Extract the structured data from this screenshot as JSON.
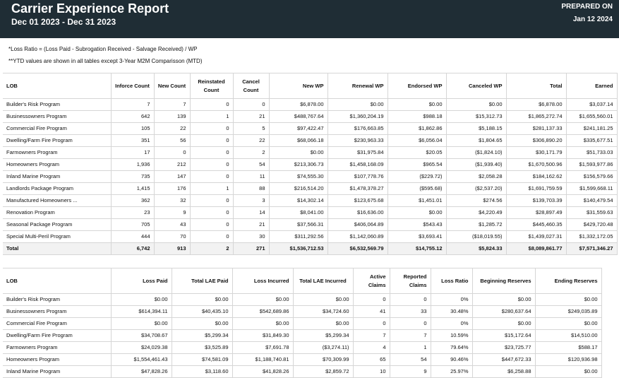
{
  "header": {
    "title": "Carrier Experience Report",
    "date_range": "Dec 01 2023 - Dec 31 2023",
    "prepared_label": "PREPARED ON",
    "prepared_date": "Jan 12 2024"
  },
  "notes": {
    "loss_ratio": "*Loss Ratio = (Loss Paid - Subrogation Received - Salvage Received) / WP",
    "ytd": "**YTD values are shown in all tables except 3-Year M2M Comparisson (MTD)"
  },
  "premium_table": {
    "headers": [
      "LOB",
      "Inforce Count",
      "New Count",
      "Reinstated Count",
      "Cancel Count",
      "New WP",
      "Renewal WP",
      "Endorsed WP",
      "Canceled WP",
      "Total",
      "Earned"
    ],
    "rows": [
      [
        "Builder's Risk Program",
        "7",
        "7",
        "0",
        "0",
        "$6,878.00",
        "$0.00",
        "$0.00",
        "$0.00",
        "$6,878.00",
        "$3,037.14"
      ],
      [
        "Businessowners Program",
        "642",
        "139",
        "1",
        "21",
        "$488,767.64",
        "$1,360,204.19",
        "$988.18",
        "$15,312.73",
        "$1,865,272.74",
        "$1,655,560.01"
      ],
      [
        "Commercial Fire Program",
        "105",
        "22",
        "0",
        "5",
        "$97,422.47",
        "$176,663.85",
        "$1,862.86",
        "$5,188.15",
        "$281,137.33",
        "$241,181.25"
      ],
      [
        "Dwelling/Farm Fire Program",
        "351",
        "56",
        "0",
        "22",
        "$68,066.18",
        "$230,963.33",
        "$6,056.04",
        "$1,804.65",
        "$306,890.20",
        "$335,677.51"
      ],
      [
        "Farmowners Program",
        "17",
        "0",
        "0",
        "2",
        "$0.00",
        "$31,975.84",
        "$20.05",
        "($1,824.10)",
        "$30,171.79",
        "$51,733.03"
      ],
      [
        "Homeowners Program",
        "1,936",
        "212",
        "0",
        "54",
        "$213,306.73",
        "$1,458,168.09",
        "$965.54",
        "($1,939.40)",
        "$1,670,500.96",
        "$1,593,977.86"
      ],
      [
        "Inland Marine Program",
        "735",
        "147",
        "0",
        "11",
        "$74,555.30",
        "$107,778.76",
        "($229.72)",
        "$2,058.28",
        "$184,162.62",
        "$156,579.66"
      ],
      [
        "Landlords Package Program",
        "1,415",
        "176",
        "1",
        "88",
        "$216,514.20",
        "$1,478,378.27",
        "($595.68)",
        "($2,537.20)",
        "$1,691,759.59",
        "$1,599,668.11"
      ],
      [
        "Manufactured Homeowners ...",
        "362",
        "32",
        "0",
        "3",
        "$14,302.14",
        "$123,675.68",
        "$1,451.01",
        "$274.56",
        "$139,703.39",
        "$140,479.54"
      ],
      [
        "Renovation Program",
        "23",
        "9",
        "0",
        "14",
        "$8,041.00",
        "$16,636.00",
        "$0.00",
        "$4,220.49",
        "$28,897.49",
        "$31,559.63"
      ],
      [
        "Seasonal Package Program",
        "705",
        "43",
        "0",
        "21",
        "$37,566.31",
        "$406,064.89",
        "$543.43",
        "$1,285.72",
        "$445,460.35",
        "$429,720.48"
      ],
      [
        "Special Multi-Peril Program",
        "444",
        "70",
        "0",
        "30",
        "$311,292.56",
        "$1,142,060.89",
        "$3,693.41",
        "($18,019.55)",
        "$1,439,027.31",
        "$1,332,172.05"
      ]
    ],
    "total": [
      "Total",
      "6,742",
      "913",
      "2",
      "271",
      "$1,536,712.53",
      "$6,532,569.79",
      "$14,755.12",
      "$5,824.33",
      "$8,089,861.77",
      "$7,571,346.27"
    ]
  },
  "loss_table": {
    "headers": [
      "LOB",
      "Loss Paid",
      "Total LAE Paid",
      "Loss Incurred",
      "Total LAE Incurred",
      "Active Claims",
      "Reported Claims",
      "Loss Ratio",
      "Beginning Reserves",
      "Ending Reserves"
    ],
    "rows": [
      [
        "Builder's Risk Program",
        "$0.00",
        "$0.00",
        "$0.00",
        "$0.00",
        "0",
        "0",
        "0%",
        "$0.00",
        "$0.00"
      ],
      [
        "Businessowners Program",
        "$614,394.11",
        "$40,435.10",
        "$542,689.86",
        "$34,724.60",
        "41",
        "33",
        "30.48%",
        "$280,637.64",
        "$249,035.89"
      ],
      [
        "Commercial Fire Program",
        "$0.00",
        "$0.00",
        "$0.00",
        "$0.00",
        "0",
        "0",
        "0%",
        "$0.00",
        "$0.00"
      ],
      [
        "Dwelling/Farm Fire Program",
        "$34,708.67",
        "$5,299.34",
        "$31,849.30",
        "$5,299.34",
        "7",
        "7",
        "10.59%",
        "$15,172.64",
        "$14,510.00"
      ],
      [
        "Farmowners Program",
        "$24,029.38",
        "$3,525.89",
        "$7,691.78",
        "($3,274.11)",
        "4",
        "1",
        "79.64%",
        "$23,725.77",
        "$588.17"
      ],
      [
        "Homeowners Program",
        "$1,554,461.43",
        "$74,581.09",
        "$1,188,740.81",
        "$70,309.99",
        "65",
        "54",
        "90.46%",
        "$447,672.33",
        "$120,936.98"
      ],
      [
        "Inland Marine Program",
        "$47,828.26",
        "$3,118.60",
        "$41,828.26",
        "$2,859.72",
        "10",
        "9",
        "25.97%",
        "$6,258.88",
        "$0.00"
      ]
    ]
  }
}
